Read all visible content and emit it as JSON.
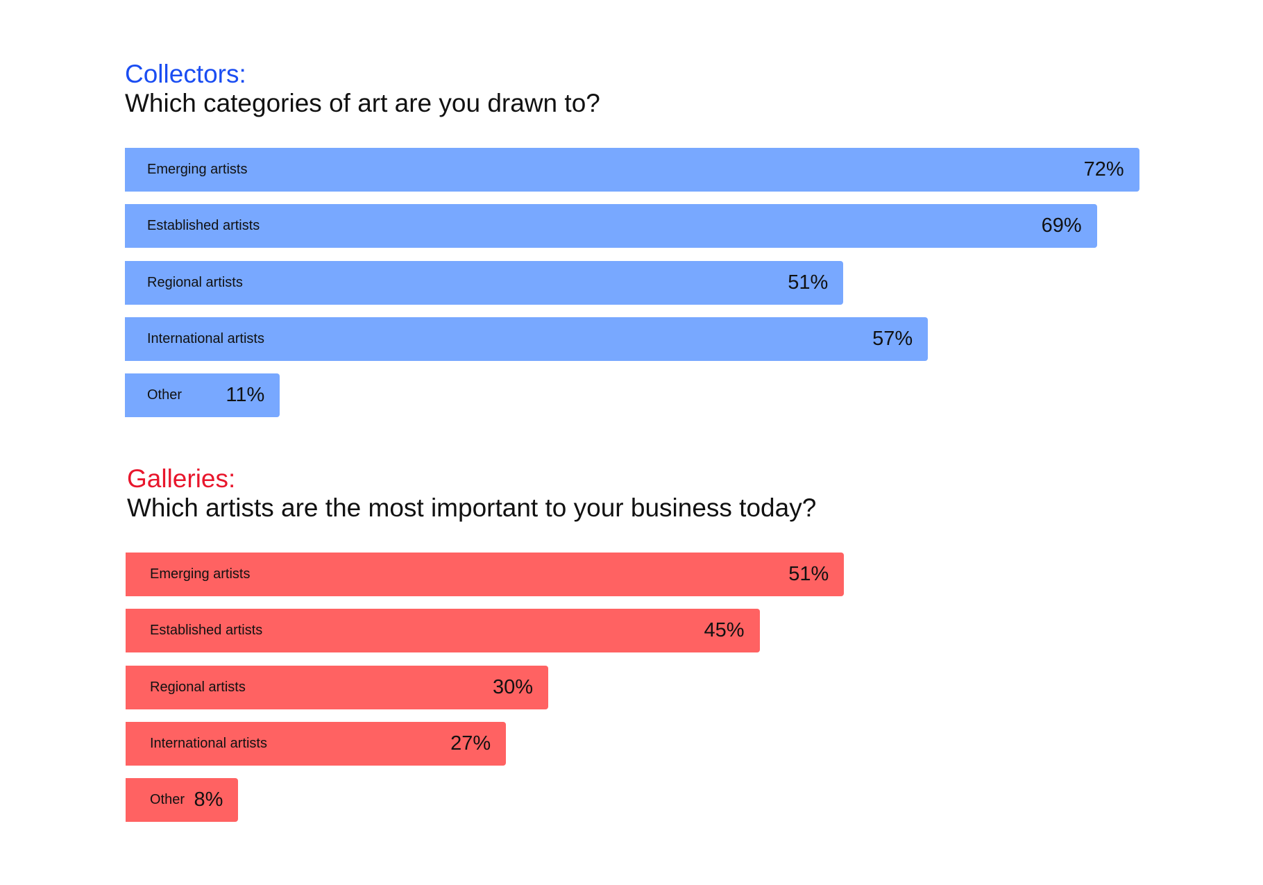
{
  "chart_data": [
    {
      "type": "bar",
      "orientation": "horizontal",
      "label": "Collectors:",
      "title": "Which categories of art are you drawn to?",
      "color": "#78a8ff",
      "label_color": "#1a4df2",
      "categories": [
        "Emerging artists",
        "Established artists",
        "Regional artists",
        "International artists",
        "Other"
      ],
      "values": [
        72,
        69,
        51,
        57,
        11
      ],
      "value_labels": [
        "72%",
        "69%",
        "51%",
        "57%",
        "11%"
      ],
      "unit": "%",
      "grid": false
    },
    {
      "type": "bar",
      "orientation": "horizontal",
      "label": "Galleries:",
      "title": "Which artists are the most important to your business today?",
      "color": "#ff6262",
      "label_color": "#e8162c",
      "categories": [
        "Emerging artists",
        "Established artists",
        "Regional artists",
        "International artists",
        "Other"
      ],
      "values": [
        51,
        45,
        30,
        27,
        8
      ],
      "value_labels": [
        "51%",
        "45%",
        "30%",
        "27%",
        "8%"
      ],
      "unit": "%",
      "grid": false
    }
  ]
}
